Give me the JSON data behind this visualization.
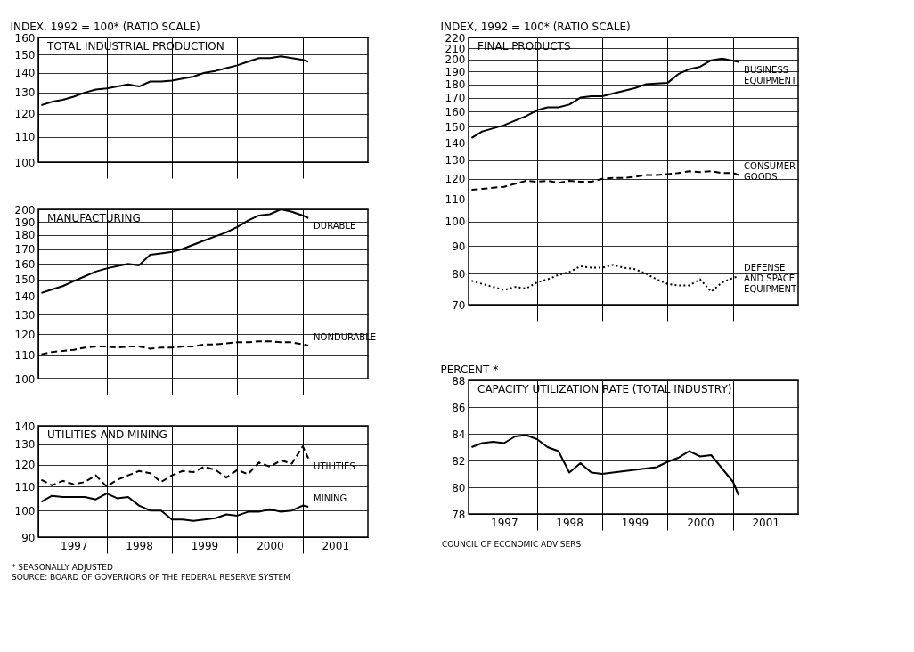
{
  "chart_data": [
    {
      "type": "line",
      "title": "TOTAL INDUSTRIAL PRODUCTION",
      "ylabel": "INDEX, 1992 = 100* (RATIO SCALE)",
      "log": true,
      "grid": true,
      "tick_labels": "y",
      "x": [
        "1997-01",
        "1997-03",
        "1997-05",
        "1997-07",
        "1997-09",
        "1997-11",
        "1998-01",
        "1998-03",
        "1998-05",
        "1998-07",
        "1998-09",
        "1998-11",
        "1999-01",
        "1999-03",
        "1999-05",
        "1999-07",
        "1999-09",
        "1999-11",
        "2000-01",
        "2000-03",
        "2000-05",
        "2000-07",
        "2000-09",
        "2000-11",
        "2001-01",
        "2001-02"
      ],
      "xlim": [
        "1996-12-15",
        "2001-12-31"
      ],
      "xticks": [
        {
          "value": "1998-01-01",
          "label": null
        },
        {
          "value": "1999-01-01",
          "label": null
        },
        {
          "value": "2000-01-01",
          "label": null
        },
        {
          "value": "2001-01-01",
          "label": null
        }
      ],
      "ylim": [
        100,
        160
      ],
      "yticks": [
        100,
        110,
        120,
        130,
        140,
        150,
        160
      ],
      "series": [
        {
          "color": "#000000",
          "line_style": "solid",
          "values": [
            124,
            125.5,
            126.5,
            128,
            130,
            131.5,
            132,
            133,
            134,
            133,
            135.5,
            135.5,
            136,
            137,
            138,
            140,
            141,
            142.5,
            144,
            146,
            148,
            148,
            149,
            148,
            147,
            146
          ]
        }
      ]
    },
    {
      "type": "line",
      "title": "MANUFACTURING",
      "log": true,
      "grid": true,
      "tick_labels": "y",
      "x": [
        "1997-01",
        "1997-03",
        "1997-05",
        "1997-07",
        "1997-09",
        "1997-11",
        "1998-01",
        "1998-03",
        "1998-05",
        "1998-07",
        "1998-09",
        "1998-11",
        "1999-01",
        "1999-03",
        "1999-05",
        "1999-07",
        "1999-09",
        "1999-11",
        "2000-01",
        "2000-03",
        "2000-05",
        "2000-07",
        "2000-09",
        "2000-11",
        "2001-01",
        "2001-02"
      ],
      "xlim": [
        "1996-12-15",
        "2001-12-31"
      ],
      "xticks": [
        {
          "value": "1998-01-01",
          "label": null
        },
        {
          "value": "1999-01-01",
          "label": null
        },
        {
          "value": "2000-01-01",
          "label": null
        },
        {
          "value": "2001-01-01",
          "label": null
        }
      ],
      "ylim": [
        100,
        200
      ],
      "yticks": [
        100,
        110,
        120,
        130,
        140,
        150,
        160,
        170,
        180,
        190,
        200
      ],
      "series": [
        {
          "name": "DURABLE",
          "color": "#000000",
          "line_style": "solid",
          "values": [
            142,
            144,
            146,
            149,
            152,
            155,
            157,
            158.5,
            160,
            159,
            166,
            167,
            168,
            170,
            173,
            176,
            179,
            182,
            186,
            191,
            195,
            196,
            200,
            198,
            195,
            193
          ]
        },
        {
          "name": "NONDURABLE",
          "color": "#000000",
          "line_style": "dashed",
          "values": [
            110.5,
            111.5,
            112,
            112.5,
            113.5,
            114,
            114,
            113.5,
            114,
            114,
            113,
            113.5,
            113.5,
            114,
            114,
            115,
            115,
            115.5,
            116,
            116,
            116.5,
            116.5,
            116,
            116,
            115,
            114.5
          ]
        }
      ]
    },
    {
      "type": "line",
      "title": "UTILITIES AND MINING",
      "log": true,
      "grid": true,
      "annotations": [
        "* SEASONALLY ADJUSTED",
        "SOURCE: BOARD OF GOVERNORS OF THE FEDERAL RESERVE SYSTEM"
      ],
      "x": [
        "1997-01",
        "1997-03",
        "1997-05",
        "1997-07",
        "1997-09",
        "1997-11",
        "1998-01",
        "1998-03",
        "1998-05",
        "1998-07",
        "1998-09",
        "1998-11",
        "1999-01",
        "1999-03",
        "1999-05",
        "1999-07",
        "1999-09",
        "1999-11",
        "2000-01",
        "2000-03",
        "2000-05",
        "2000-07",
        "2000-09",
        "2000-11",
        "2001-01",
        "2001-02"
      ],
      "xlim": [
        "1996-12-15",
        "2001-12-31"
      ],
      "xticks": [
        {
          "value": "1997-07-01",
          "label": "1997"
        },
        {
          "value": "1998-01-01",
          "label": null
        },
        {
          "value": "1998-07-01",
          "label": "1998"
        },
        {
          "value": "1999-01-01",
          "label": null
        },
        {
          "value": "1999-07-01",
          "label": "1999"
        },
        {
          "value": "2000-01-01",
          "label": null
        },
        {
          "value": "2000-07-01",
          "label": "2000"
        },
        {
          "value": "2001-01-01",
          "label": null
        },
        {
          "value": "2001-07-01",
          "label": "2001"
        }
      ],
      "ylim": [
        90,
        140
      ],
      "yticks": [
        90,
        100,
        110,
        120,
        130,
        140
      ],
      "series": [
        {
          "name": "UTILITIES",
          "color": "#000000",
          "line_style": "dashed",
          "values": [
            113,
            110.5,
            112.5,
            111,
            112,
            115,
            110,
            113,
            115,
            117,
            116,
            112,
            115,
            117,
            116.5,
            119,
            117.5,
            114,
            117.5,
            115.5,
            121,
            119,
            122,
            120.5,
            129,
            123
          ]
        },
        {
          "name": "MINING",
          "color": "#000000",
          "line_style": "solid",
          "values": [
            103.5,
            106,
            105.5,
            105.5,
            105.5,
            104.5,
            107,
            105,
            105.5,
            102,
            100,
            100,
            96.5,
            96.5,
            96,
            96.5,
            97,
            98.5,
            98,
            99.5,
            99.5,
            100.5,
            99.5,
            100,
            102,
            101.5
          ]
        }
      ]
    },
    {
      "type": "line",
      "title": "FINAL PRODUCTS",
      "ylabel": "INDEX, 1992 = 100* (RATIO SCALE)",
      "log": true,
      "grid": true,
      "tick_labels": "y",
      "x": [
        "1997-01",
        "1997-03",
        "1997-05",
        "1997-07",
        "1997-09",
        "1997-11",
        "1998-01",
        "1998-03",
        "1998-05",
        "1998-07",
        "1998-09",
        "1998-11",
        "1999-01",
        "1999-03",
        "1999-05",
        "1999-07",
        "1999-09",
        "1999-11",
        "2000-01",
        "2000-03",
        "2000-05",
        "2000-07",
        "2000-09",
        "2000-11",
        "2001-01",
        "2001-02"
      ],
      "xlim": [
        "1996-12-15",
        "2001-12-31"
      ],
      "xticks": [
        {
          "value": "1998-01-01",
          "label": null
        },
        {
          "value": "1999-01-01",
          "label": null
        },
        {
          "value": "2000-01-01",
          "label": null
        },
        {
          "value": "2001-01-01",
          "label": null
        }
      ],
      "ylim": [
        70,
        220
      ],
      "yticks": [
        70,
        80,
        90,
        100,
        110,
        120,
        130,
        140,
        150,
        160,
        170,
        180,
        190,
        200,
        210,
        220
      ],
      "series": [
        {
          "name": "BUSINESS EQUIPMENT",
          "color": "#000000",
          "line_style": "solid",
          "values": [
            143,
            147,
            149,
            151,
            154,
            157,
            161,
            163,
            163,
            165,
            170,
            171,
            171,
            173,
            175,
            177,
            180,
            180.5,
            181,
            188,
            192,
            194,
            199.5,
            201,
            199,
            198
          ]
        },
        {
          "name": "CONSUMER GOODS",
          "color": "#000000",
          "line_style": "dashed",
          "values": [
            114.5,
            115,
            115.5,
            116,
            117.5,
            119,
            118.5,
            119,
            118,
            119,
            118.5,
            118.5,
            120,
            120.5,
            120.5,
            121,
            122,
            122,
            122.5,
            123,
            124,
            123.5,
            124,
            123,
            123,
            122
          ]
        },
        {
          "name": "DEFENSE AND SPACE EQUIPMENT",
          "color": "#000000",
          "line_style": "dotted",
          "values": [
            77.5,
            76.5,
            75.5,
            74.5,
            75.5,
            75,
            77,
            78,
            79.5,
            80.5,
            82.5,
            82,
            82,
            83,
            82,
            81.5,
            80,
            78,
            76.5,
            76,
            76,
            78,
            74,
            77,
            78.5,
            79
          ]
        }
      ]
    },
    {
      "type": "line",
      "title": "CAPACITY UTILIZATION RATE (TOTAL INDUSTRY)",
      "ylabel": "PERCENT *",
      "grid": true,
      "annotations": [
        "COUNCIL OF ECONOMIC ADVISERS"
      ],
      "x": [
        "1997-01",
        "1997-03",
        "1997-05",
        "1997-07",
        "1997-09",
        "1997-11",
        "1998-01",
        "1998-03",
        "1998-05",
        "1998-07",
        "1998-09",
        "1998-11",
        "1999-01",
        "1999-03",
        "1999-05",
        "1999-07",
        "1999-09",
        "1999-11",
        "2000-01",
        "2000-03",
        "2000-05",
        "2000-07",
        "2000-09",
        "2000-11",
        "2001-01",
        "2001-02"
      ],
      "xlim": [
        "1996-12-15",
        "2001-12-31"
      ],
      "xticks": [
        {
          "value": "1997-07-01",
          "label": "1997"
        },
        {
          "value": "1998-01-01",
          "label": null
        },
        {
          "value": "1998-07-01",
          "label": "1998"
        },
        {
          "value": "1999-01-01",
          "label": null
        },
        {
          "value": "1999-07-01",
          "label": "1999"
        },
        {
          "value": "2000-01-01",
          "label": null
        },
        {
          "value": "2000-07-01",
          "label": "2000"
        },
        {
          "value": "2001-01-01",
          "label": null
        },
        {
          "value": "2001-07-01",
          "label": "2001"
        }
      ],
      "ylim": [
        78,
        88
      ],
      "yticks": [
        78,
        80,
        82,
        84,
        86,
        88
      ],
      "series": [
        {
          "color": "#000000",
          "line_style": "solid",
          "values": [
            83,
            83.3,
            83.4,
            83.3,
            83.8,
            83.9,
            83.6,
            83.0,
            82.7,
            81.1,
            81.8,
            81.1,
            81.0,
            81.1,
            81.2,
            81.3,
            81.4,
            81.5,
            81.9,
            82.2,
            82.7,
            82.3,
            82.4,
            81.4,
            80.4,
            79.4
          ]
        }
      ]
    }
  ]
}
